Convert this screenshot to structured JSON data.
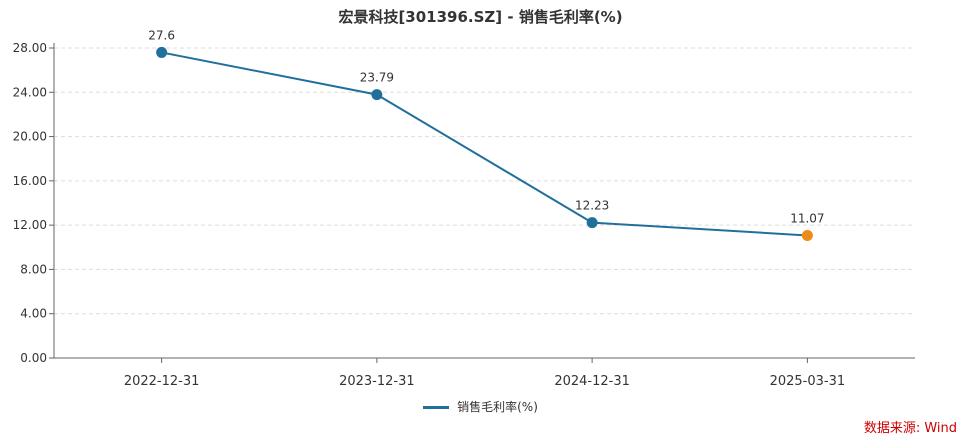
{
  "chart_data": {
    "type": "line",
    "title": "宏景科技[301396.SZ] - 销售毛利率(%)",
    "categories": [
      "2022-12-31",
      "2023-12-31",
      "2024-12-31",
      "2025-03-31"
    ],
    "series": [
      {
        "name": "销售毛利率(%)",
        "values": [
          27.6,
          23.79,
          12.23,
          11.07
        ],
        "labels": [
          "27.6",
          "23.79",
          "12.23",
          "11.07"
        ],
        "color": "#21709b",
        "point_colors": [
          "#21709b",
          "#21709b",
          "#21709b",
          "#ec8a1a"
        ]
      }
    ],
    "yticks": [
      "0.00",
      "4.00",
      "8.00",
      "12.00",
      "16.00",
      "20.00",
      "24.00",
      "28.00"
    ],
    "ylim": [
      0,
      28
    ],
    "grid": true,
    "legend_position": "bottom"
  },
  "source": "数据来源: Wind"
}
